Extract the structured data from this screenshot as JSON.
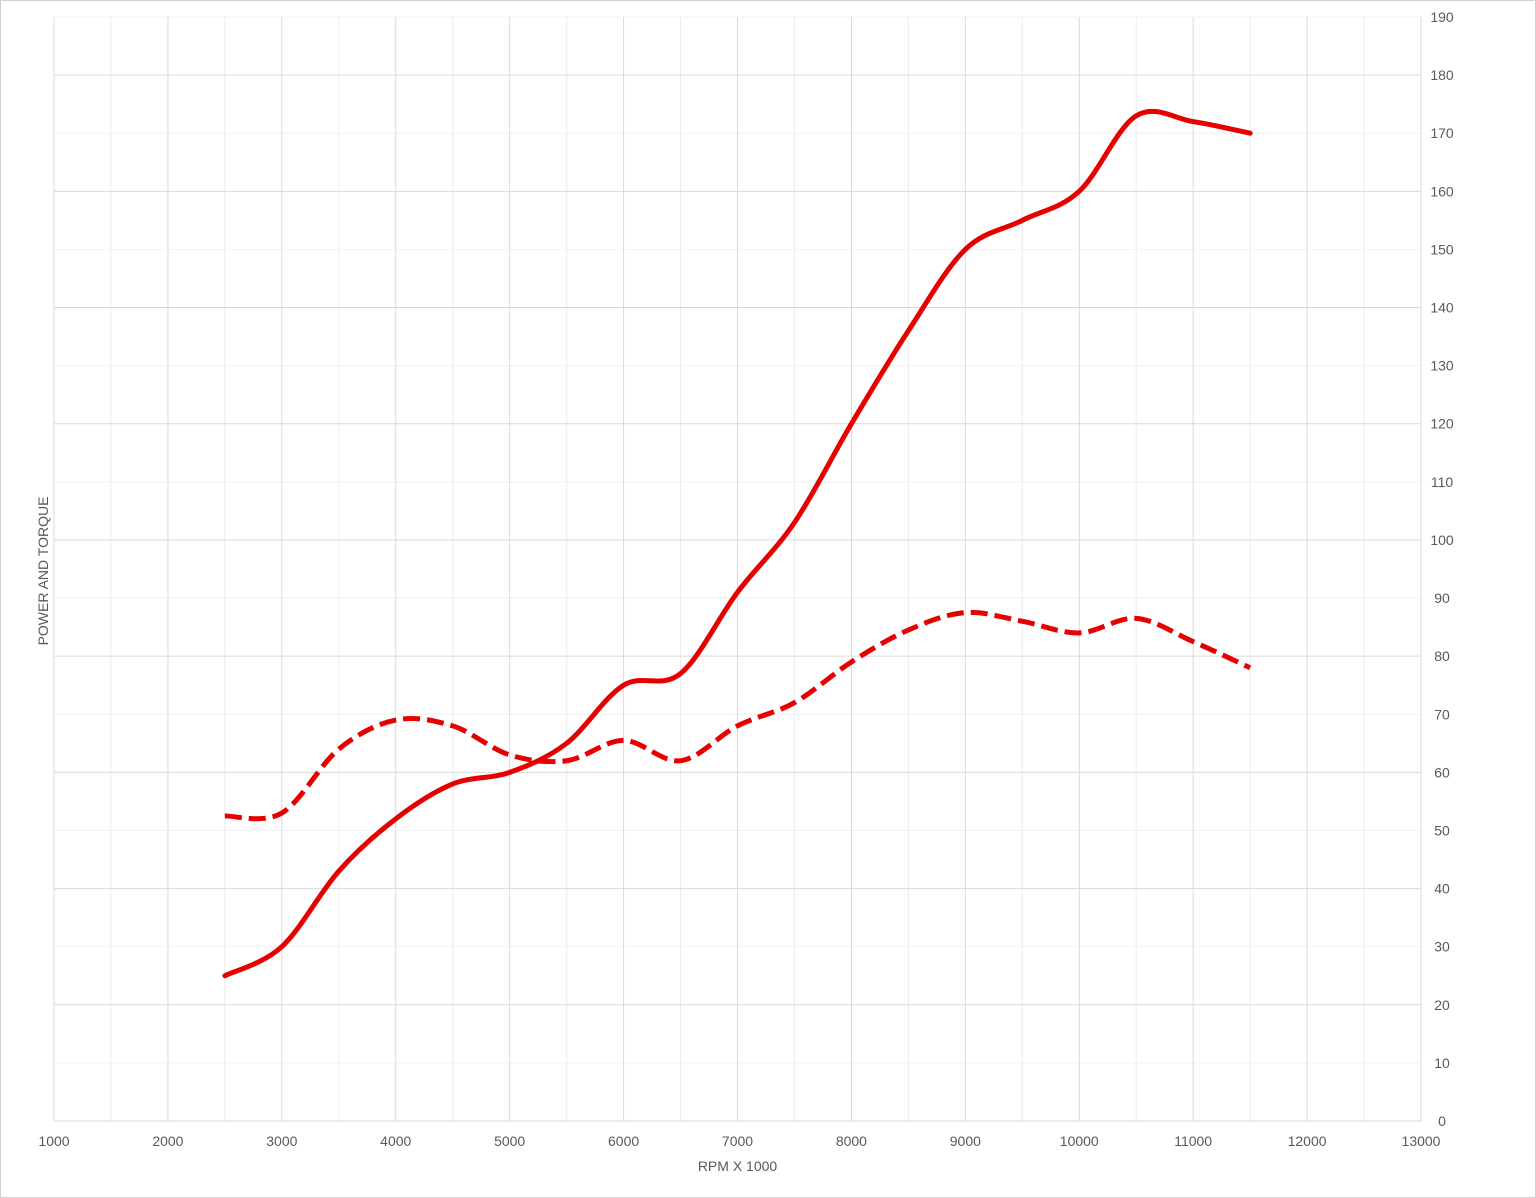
{
  "chart_data": {
    "type": "line",
    "title": "",
    "xlabel": "RPM X 1000",
    "ylabel": "POWER AND TORQUE",
    "xlim": [
      1000,
      13000
    ],
    "ylim": [
      0,
      190
    ],
    "x_major_step": 1000,
    "y_major_step": 10,
    "y_axis_side": "right",
    "grid": true,
    "legend": "none",
    "x_ticks": [
      "1000",
      "2000",
      "3000",
      "4000",
      "5000",
      "6000",
      "7000",
      "8000",
      "9000",
      "10000",
      "11000",
      "12000",
      "13000"
    ],
    "y_ticks": [
      "0",
      "10",
      "20",
      "30",
      "40",
      "50",
      "60",
      "70",
      "80",
      "90",
      "100",
      "110",
      "120",
      "130",
      "140",
      "150",
      "160",
      "170",
      "180",
      "190"
    ],
    "series": [
      {
        "style": "solid",
        "color": "#e60000",
        "x": [
          2500,
          3000,
          3500,
          4000,
          4500,
          5000,
          5500,
          6000,
          6500,
          7000,
          7500,
          8000,
          8500,
          9000,
          9500,
          10000,
          10500,
          11000,
          11500
        ],
        "y": [
          25,
          30,
          43,
          52,
          58,
          60,
          65,
          75,
          77,
          91,
          103,
          120,
          136,
          150,
          155,
          160,
          173,
          172,
          170
        ]
      },
      {
        "style": "dashed",
        "color": "#e60000",
        "x": [
          2500,
          3000,
          3500,
          4000,
          4500,
          5000,
          5500,
          6000,
          6500,
          7000,
          7500,
          8000,
          8500,
          9000,
          9500,
          10000,
          10500,
          11000,
          11500
        ],
        "y": [
          52.5,
          53,
          64,
          69,
          68,
          63,
          62,
          65.5,
          62,
          68,
          72,
          79,
          84.5,
          87.5,
          86,
          84,
          86.5,
          82.5,
          78
        ]
      }
    ]
  }
}
